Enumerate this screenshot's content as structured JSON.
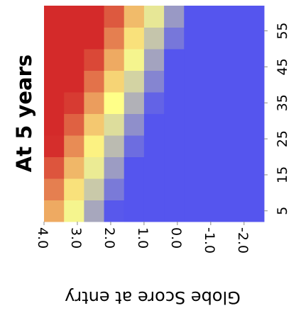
{
  "chart_data": {
    "type": "heatmap",
    "title": "At 5 years",
    "x_label": "Globe Score at entry",
    "x": [
      3.7,
      3.1,
      2.5,
      1.9,
      1.3,
      0.7,
      0.1,
      -0.5,
      -1.1,
      -1.7,
      -2.3
    ],
    "y": [
      5,
      11,
      17,
      23,
      29,
      35,
      41,
      47,
      53,
      59
    ],
    "values": [
      [
        0.7,
        0.47,
        0.24,
        0.01,
        0,
        0,
        0,
        0,
        0,
        0,
        0
      ],
      [
        0.8,
        0.57,
        0.34,
        0.11,
        0,
        0,
        0,
        0,
        0,
        0,
        0
      ],
      [
        0.9,
        0.67,
        0.44,
        0.21,
        0,
        0,
        0,
        0,
        0,
        0,
        0
      ],
      [
        0.99,
        0.77,
        0.53,
        0.3,
        0.07,
        0,
        0,
        0,
        0,
        0,
        0
      ],
      [
        1,
        0.87,
        0.63,
        0.4,
        0.17,
        0,
        0,
        0,
        0,
        0,
        0
      ],
      [
        1,
        0.96,
        0.73,
        0.5,
        0.27,
        0.04,
        0,
        0,
        0,
        0,
        0
      ],
      [
        1,
        1,
        0.83,
        0.6,
        0.37,
        0.14,
        0,
        0,
        0,
        0,
        0
      ],
      [
        1,
        1,
        0.93,
        0.7,
        0.47,
        0.23,
        0,
        0,
        0,
        0,
        0
      ],
      [
        1,
        1,
        1,
        0.8,
        0.57,
        0.33,
        0.1,
        0,
        0,
        0,
        0
      ],
      [
        1,
        1,
        1,
        0.89,
        0.66,
        0.43,
        0.2,
        0,
        0,
        0,
        0
      ]
    ],
    "colormap": [
      "#5555ee",
      "#ffff88",
      "#d42a2a"
    ],
    "xlim": [
      4.0,
      -2.6
    ],
    "ylim": [
      2,
      62
    ],
    "xticks": [
      {
        "value": 4,
        "label": "4.0"
      },
      {
        "value": 3,
        "label": "3.0"
      },
      {
        "value": 2,
        "label": "2.0"
      },
      {
        "value": 1,
        "label": "1.0"
      },
      {
        "value": 0,
        "label": "0.0"
      },
      {
        "value": -1,
        "label": "-1.0"
      },
      {
        "value": -2,
        "label": "-2.0"
      }
    ],
    "yticks": [
      5,
      15,
      25,
      35,
      45,
      55
    ],
    "grid": false
  }
}
